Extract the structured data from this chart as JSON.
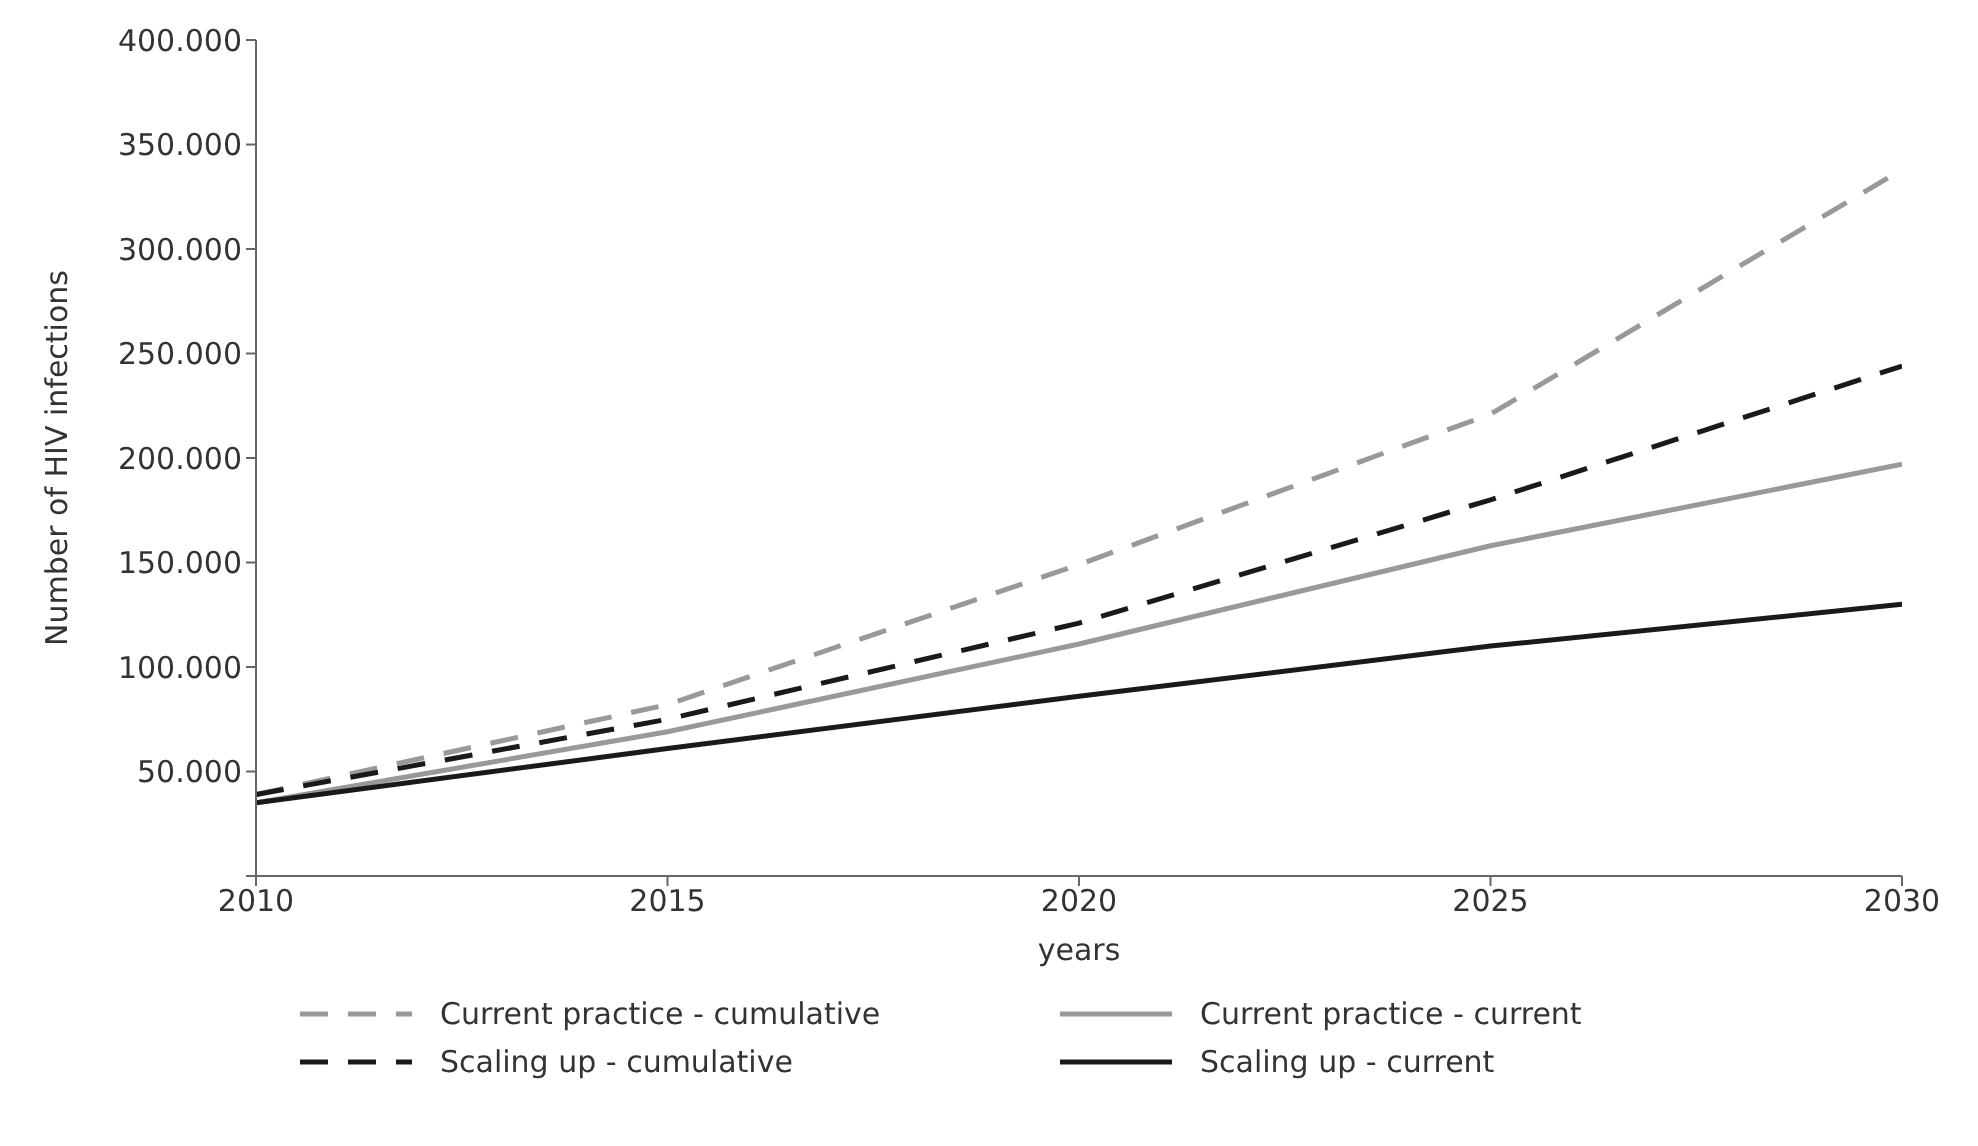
{
  "chart_data": {
    "type": "line",
    "xlabel": "years",
    "ylabel": "Number of HIV infections",
    "x": [
      2010,
      2015,
      2020,
      2025,
      2030
    ],
    "xlim": [
      2010,
      2030
    ],
    "xticks": [
      2010,
      2015,
      2020,
      2025,
      2030
    ],
    "ylim": [
      0,
      400000
    ],
    "yticks": [
      {
        "value": 0,
        "label": null
      },
      {
        "value": 50000,
        "label": "50.000"
      },
      {
        "value": 100000,
        "label": "100.000"
      },
      {
        "value": 150000,
        "label": "150.000"
      },
      {
        "value": 200000,
        "label": "200.000"
      },
      {
        "value": 250000,
        "label": "250.000"
      },
      {
        "value": 300000,
        "label": "300.000"
      },
      {
        "value": 350000,
        "label": "350.000"
      },
      {
        "value": 400000,
        "label": "400.000"
      }
    ],
    "grid": false,
    "legend": "bottom",
    "marker": "none",
    "series": [
      {
        "name": "Current practice - cumulative",
        "color": "#999999",
        "line_style": "dashed",
        "values": [
          39000,
          82000,
          149000,
          221000,
          338000
        ]
      },
      {
        "name": "Current practice - current",
        "color": "#999999",
        "line_style": "solid",
        "values": [
          35000,
          69000,
          111000,
          158000,
          197000
        ]
      },
      {
        "name": "Scaling up - cumulative",
        "color": "#1a1a1a",
        "line_style": "dashed",
        "values": [
          39000,
          75000,
          121000,
          180000,
          244000
        ]
      },
      {
        "name": "Scaling up - current",
        "color": "#1a1a1a",
        "line_style": "solid",
        "values": [
          35000,
          61000,
          86000,
          110000,
          130000
        ]
      }
    ]
  }
}
